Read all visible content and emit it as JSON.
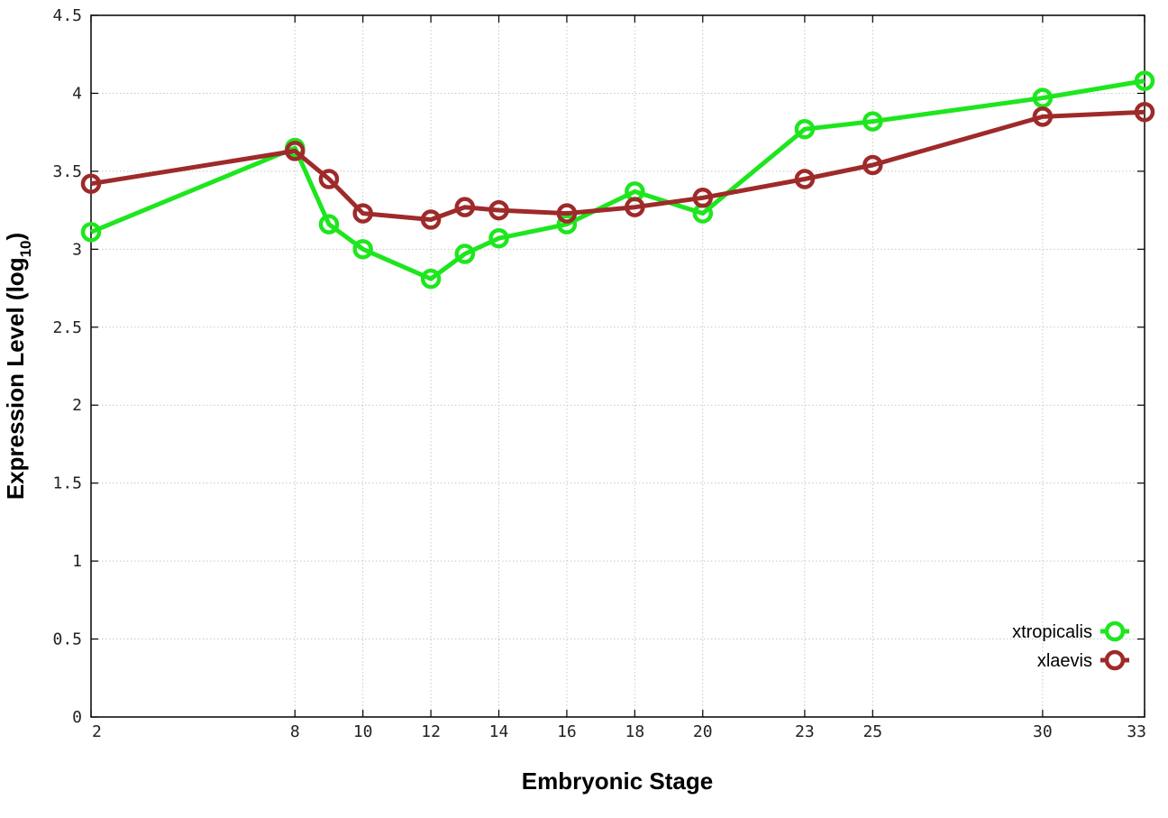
{
  "chart_data": {
    "type": "line",
    "xlabel": "Embryonic Stage",
    "ylabel": "Expression Level (log",
    "ylabel_subscript": "10",
    "ylabel_suffix": ")",
    "xlim": [
      2,
      33
    ],
    "ylim": [
      0,
      4.5
    ],
    "x_ticks": [
      2,
      8,
      10,
      12,
      14,
      16,
      18,
      20,
      23,
      25,
      30,
      33
    ],
    "y_ticks": [
      0,
      0.5,
      1,
      1.5,
      2,
      2.5,
      3,
      3.5,
      4,
      4.5
    ],
    "y_tick_labels": [
      "0",
      "0.5",
      "1",
      "1.5",
      "2",
      "2.5",
      "3",
      "3.5",
      "4",
      "4.5"
    ],
    "grid": true,
    "legend_position": "bottom-right",
    "x": [
      2,
      8,
      9,
      10,
      12,
      13,
      14,
      16,
      18,
      20,
      23,
      25,
      30,
      33
    ],
    "series": [
      {
        "name": "xtropicalis",
        "color": "#1ee61e",
        "values": [
          3.11,
          3.65,
          3.16,
          3.0,
          2.81,
          2.97,
          3.07,
          3.16,
          3.37,
          3.23,
          3.77,
          3.82,
          3.97,
          4.08
        ]
      },
      {
        "name": "xlaevis",
        "color": "#9e2a2a",
        "values": [
          3.42,
          3.63,
          3.45,
          3.23,
          3.19,
          3.27,
          3.25,
          3.23,
          3.27,
          3.33,
          3.45,
          3.54,
          3.85,
          3.88
        ]
      }
    ]
  }
}
